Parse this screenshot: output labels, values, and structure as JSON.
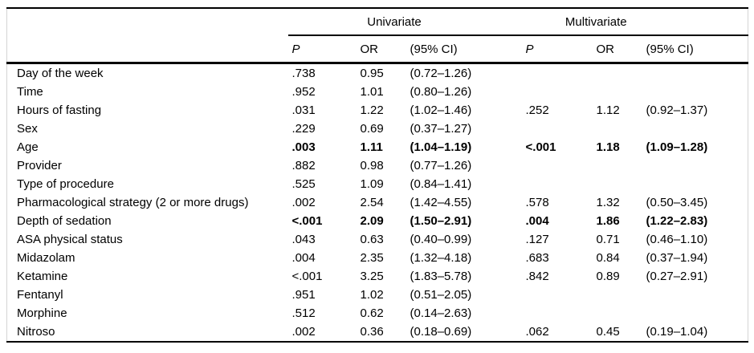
{
  "table": {
    "group_headers": [
      {
        "label": "Univariate"
      },
      {
        "label": "Multivariate"
      }
    ],
    "sub_headers": {
      "p": "P",
      "or": "OR",
      "ci": "(95% CI)"
    },
    "rows": [
      {
        "label": "Day of the week",
        "uni": {
          "p": ".738",
          "or": "0.95",
          "ci": "(0.72–1.26)"
        },
        "multi": {
          "p": "",
          "or": "",
          "ci": ""
        },
        "bold_values": false
      },
      {
        "label": "Time",
        "uni": {
          "p": ".952",
          "or": "1.01",
          "ci": "(0.80–1.26)"
        },
        "multi": {
          "p": "",
          "or": "",
          "ci": ""
        },
        "bold_values": false
      },
      {
        "label": "Hours of fasting",
        "uni": {
          "p": ".031",
          "or": "1.22",
          "ci": "(1.02–1.46)"
        },
        "multi": {
          "p": ".252",
          "or": "1.12",
          "ci": "(0.92–1.37)"
        },
        "bold_values": false
      },
      {
        "label": "Sex",
        "uni": {
          "p": ".229",
          "or": "0.69",
          "ci": "(0.37–1.27)"
        },
        "multi": {
          "p": "",
          "or": "",
          "ci": ""
        },
        "bold_values": false
      },
      {
        "label": "Age",
        "uni": {
          "p": ".003",
          "or": "1.11",
          "ci": "(1.04–1.19)"
        },
        "multi": {
          "p": "<.001",
          "or": "1.18",
          "ci": "(1.09–1.28)"
        },
        "bold_values": true
      },
      {
        "label": "Provider",
        "uni": {
          "p": ".882",
          "or": "0.98",
          "ci": "(0.77–1.26)"
        },
        "multi": {
          "p": "",
          "or": "",
          "ci": ""
        },
        "bold_values": false
      },
      {
        "label": "Type of procedure",
        "uni": {
          "p": ".525",
          "or": "1.09",
          "ci": "(0.84–1.41)"
        },
        "multi": {
          "p": "",
          "or": "",
          "ci": ""
        },
        "bold_values": false
      },
      {
        "label": "Pharmacological strategy (2 or more drugs)",
        "uni": {
          "p": ".002",
          "or": "2.54",
          "ci": "(1.42–4.55)"
        },
        "multi": {
          "p": ".578",
          "or": "1.32",
          "ci": "(0.50–3.45)"
        },
        "bold_values": false
      },
      {
        "label": "Depth of sedation",
        "uni": {
          "p": "<.001",
          "or": "2.09",
          "ci": "(1.50–2.91)"
        },
        "multi": {
          "p": ".004",
          "or": "1.86",
          "ci": "(1.22–2.83)"
        },
        "bold_values": true
      },
      {
        "label": "ASA physical status",
        "uni": {
          "p": ".043",
          "or": "0.63",
          "ci": "(0.40–0.99)"
        },
        "multi": {
          "p": ".127",
          "or": "0.71",
          "ci": "(0.46–1.10)"
        },
        "bold_values": false
      },
      {
        "label": "Midazolam",
        "uni": {
          "p": ".004",
          "or": "2.35",
          "ci": "(1.32–4.18)"
        },
        "multi": {
          "p": ".683",
          "or": "0.84",
          "ci": "(0.37–1.94)"
        },
        "bold_values": false
      },
      {
        "label": "Ketamine",
        "uni": {
          "p": "<.001",
          "or": "3.25",
          "ci": "(1.83–5.78)"
        },
        "multi": {
          "p": ".842",
          "or": "0.89",
          "ci": "(0.27–2.91)"
        },
        "bold_values": false
      },
      {
        "label": "Fentanyl",
        "uni": {
          "p": ".951",
          "or": "1.02",
          "ci": "(0.51–2.05)"
        },
        "multi": {
          "p": "",
          "or": "",
          "ci": ""
        },
        "bold_values": false
      },
      {
        "label": "Morphine",
        "uni": {
          "p": ".512",
          "or": "0.62",
          "ci": "(0.14–2.63)"
        },
        "multi": {
          "p": "",
          "or": "",
          "ci": ""
        },
        "bold_values": false
      },
      {
        "label": "Nitroso",
        "uni": {
          "p": ".002",
          "or": "0.36",
          "ci": "(0.18–0.69)"
        },
        "multi": {
          "p": ".062",
          "or": "0.45",
          "ci": "(0.19–1.04)"
        },
        "bold_values": false
      }
    ]
  },
  "colors": {
    "text": "#000000",
    "rules": "#000000",
    "background": "#ffffff",
    "side_rule": "#d4d4d4"
  }
}
